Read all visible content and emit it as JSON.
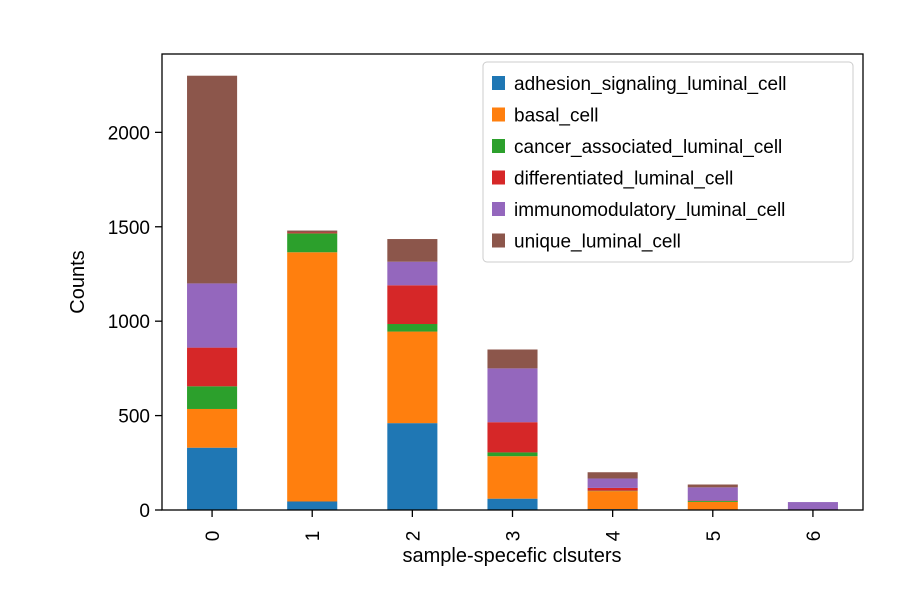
{
  "chart_data": {
    "type": "bar",
    "stacked": true,
    "title": "",
    "xlabel": "sample-specefic clsuters",
    "ylabel": "Counts",
    "categories": [
      "0",
      "1",
      "2",
      "3",
      "4",
      "5",
      "6"
    ],
    "ylim": [
      0,
      2415
    ],
    "yticks": [
      0,
      500,
      1000,
      1500,
      2000
    ],
    "legend_position": "top-right",
    "series": [
      {
        "name": "adhesion_signaling_luminal_cell",
        "color": "#1f77b4",
        "values": [
          330,
          45,
          460,
          60,
          5,
          3,
          0
        ]
      },
      {
        "name": "basal_cell",
        "color": "#ff7f0e",
        "values": [
          205,
          1320,
          485,
          225,
          95,
          40,
          2
        ]
      },
      {
        "name": "cancer_associated_luminal_cell",
        "color": "#2ca02c",
        "values": [
          120,
          100,
          40,
          20,
          2,
          5,
          0
        ]
      },
      {
        "name": "differentiated_luminal_cell",
        "color": "#d62728",
        "values": [
          205,
          5,
          205,
          160,
          15,
          2,
          0
        ]
      },
      {
        "name": "immunomodulatory_luminal_cell",
        "color": "#9467bd",
        "values": [
          340,
          0,
          125,
          285,
          50,
          70,
          40
        ]
      },
      {
        "name": "unique_luminal_cell",
        "color": "#8c564b",
        "values": [
          1100,
          10,
          120,
          100,
          33,
          15,
          0
        ]
      }
    ]
  }
}
